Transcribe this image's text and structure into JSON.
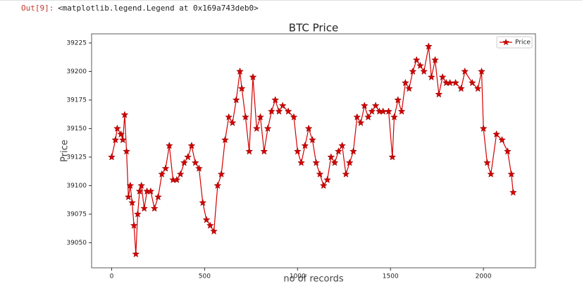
{
  "cell": {
    "prompt": "Out[9]:",
    "output": "<matplotlib.legend.Legend at 0x169a743deb0>"
  },
  "chart_data": {
    "type": "line",
    "title": "BTC Price",
    "xlabel": "no of records",
    "ylabel": "Price",
    "x": [
      0,
      20,
      30,
      50,
      60,
      70,
      80,
      90,
      100,
      110,
      120,
      130,
      140,
      150,
      160,
      175,
      190,
      210,
      230,
      250,
      270,
      290,
      310,
      330,
      350,
      370,
      390,
      410,
      430,
      450,
      470,
      490,
      510,
      530,
      550,
      570,
      590,
      610,
      630,
      650,
      670,
      690,
      700,
      720,
      740,
      760,
      780,
      800,
      820,
      840,
      860,
      880,
      900,
      920,
      950,
      980,
      1000,
      1020,
      1040,
      1060,
      1080,
      1100,
      1120,
      1140,
      1160,
      1180,
      1200,
      1220,
      1240,
      1260,
      1280,
      1300,
      1320,
      1340,
      1360,
      1380,
      1400,
      1420,
      1440,
      1460,
      1490,
      1510,
      1520,
      1540,
      1560,
      1580,
      1600,
      1620,
      1640,
      1660,
      1680,
      1705,
      1720,
      1740,
      1760,
      1780,
      1800,
      1820,
      1850,
      1880,
      1900,
      1940,
      1970,
      1990,
      2000,
      2020,
      2040,
      2070,
      2100,
      2130,
      2150,
      2160
    ],
    "series": [
      {
        "name": "Price",
        "color": "#d40000",
        "values": [
          39125,
          39140,
          39150,
          39145,
          39140,
          39162,
          39130,
          39090,
          39100,
          39085,
          39065,
          39040,
          39075,
          39095,
          39100,
          39080,
          39095,
          39095,
          39080,
          39090,
          39110,
          39115,
          39135,
          39105,
          39105,
          39110,
          39120,
          39125,
          39135,
          39120,
          39115,
          39085,
          39070,
          39065,
          39060,
          39100,
          39110,
          39140,
          39160,
          39155,
          39175,
          39200,
          39185,
          39160,
          39130,
          39195,
          39150,
          39160,
          39130,
          39150,
          39165,
          39175,
          39165,
          39170,
          39165,
          39160,
          39130,
          39120,
          39135,
          39150,
          39140,
          39120,
          39110,
          39100,
          39105,
          39125,
          39120,
          39130,
          39135,
          39110,
          39120,
          39130,
          39160,
          39155,
          39170,
          39160,
          39165,
          39170,
          39165,
          39165,
          39165,
          39125,
          39160,
          39175,
          39165,
          39190,
          39185,
          39200,
          39210,
          39205,
          39200,
          39222,
          39195,
          39210,
          39180,
          39195,
          39190,
          39190,
          39190,
          39185,
          39200,
          39190,
          39185,
          39200,
          39150,
          39120,
          39110,
          39145,
          39140,
          39130,
          39110,
          39094
        ]
      }
    ],
    "xlim": [
      -108,
      2280
    ],
    "ylim": [
      39028,
      39233
    ],
    "xticks": [
      0,
      500,
      1000,
      1500,
      2000
    ],
    "yticks": [
      39050,
      39075,
      39100,
      39125,
      39150,
      39175,
      39200,
      39225
    ],
    "legend": "upper right",
    "marker": "star"
  }
}
